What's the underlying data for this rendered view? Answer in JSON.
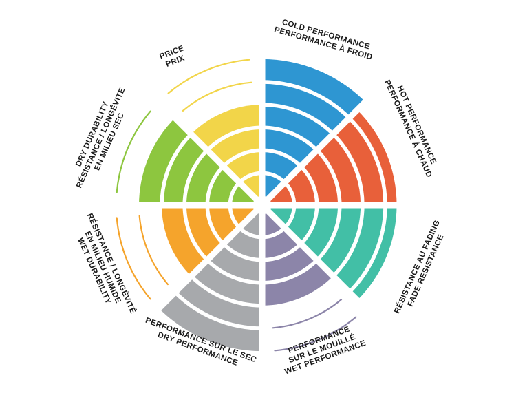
{
  "page": {
    "background": "#ffffff",
    "text_color": "#1a1a1a"
  },
  "chart_data": {
    "type": "radial-sector-wheel",
    "description": "Tire performance rating wheel, 8 criteria, rings filled out of 6",
    "max_rings": 6,
    "rings_total": 6,
    "grid": "concentric white ring separators and 8 white radial dividers",
    "legend_position": "labels around rim, rotated tangentially, bilingual EN/FR",
    "sectors": [
      {
        "id": "cold-performance",
        "lines": [
          "COLD PERFORMANCE",
          "PERFORMANCE À FROID"
        ],
        "color": "#2E96D2",
        "value": 6,
        "outline_rings": []
      },
      {
        "id": "hot-performance",
        "lines": [
          "HOT PERFORMANCE",
          "PERFORMANCE À CHAUD"
        ],
        "color": "#E8603A",
        "value": 5.5,
        "outline_rings": []
      },
      {
        "id": "fade-resistance",
        "lines": [
          "RÉSISTANCE AU FADING",
          "FADE RESISTANCE"
        ],
        "color": "#42BFA6",
        "value": 5.5,
        "outline_rings": []
      },
      {
        "id": "wet-performance",
        "lines": [
          "PERFORMANCE",
          "SUR LE MOUILLÉ",
          "WET PERFORMANCE"
        ],
        "color": "#8C85A9",
        "value": 4,
        "outline_rings": [
          5,
          6
        ]
      },
      {
        "id": "dry-performance",
        "lines": [
          "PERFORMANCE SUR LE SEC",
          "DRY PERFORMANCE"
        ],
        "color": "#A7A9AC",
        "value": 6,
        "outline_rings": []
      },
      {
        "id": "wet-durability",
        "lines": [
          "RÉSISTANCE / LONGÉVITÉ",
          "EN MILIEU HUMIDE",
          "WET DURABILITY"
        ],
        "color": "#F5A42C",
        "value": 4,
        "outline_rings": [
          5,
          6
        ]
      },
      {
        "id": "dry-durability",
        "lines": [
          "DRY DURABILITY",
          "RÉSISTANCE / LONGÉVITÉ",
          "EN MILIEU SEC"
        ],
        "color": "#8DC63F",
        "value": 5,
        "outline_rings": [
          6
        ]
      },
      {
        "id": "price",
        "lines": [
          "PRICE",
          "PRIX"
        ],
        "color": "#F2D549",
        "value": 4,
        "outline_rings": [
          5,
          6
        ]
      }
    ]
  }
}
